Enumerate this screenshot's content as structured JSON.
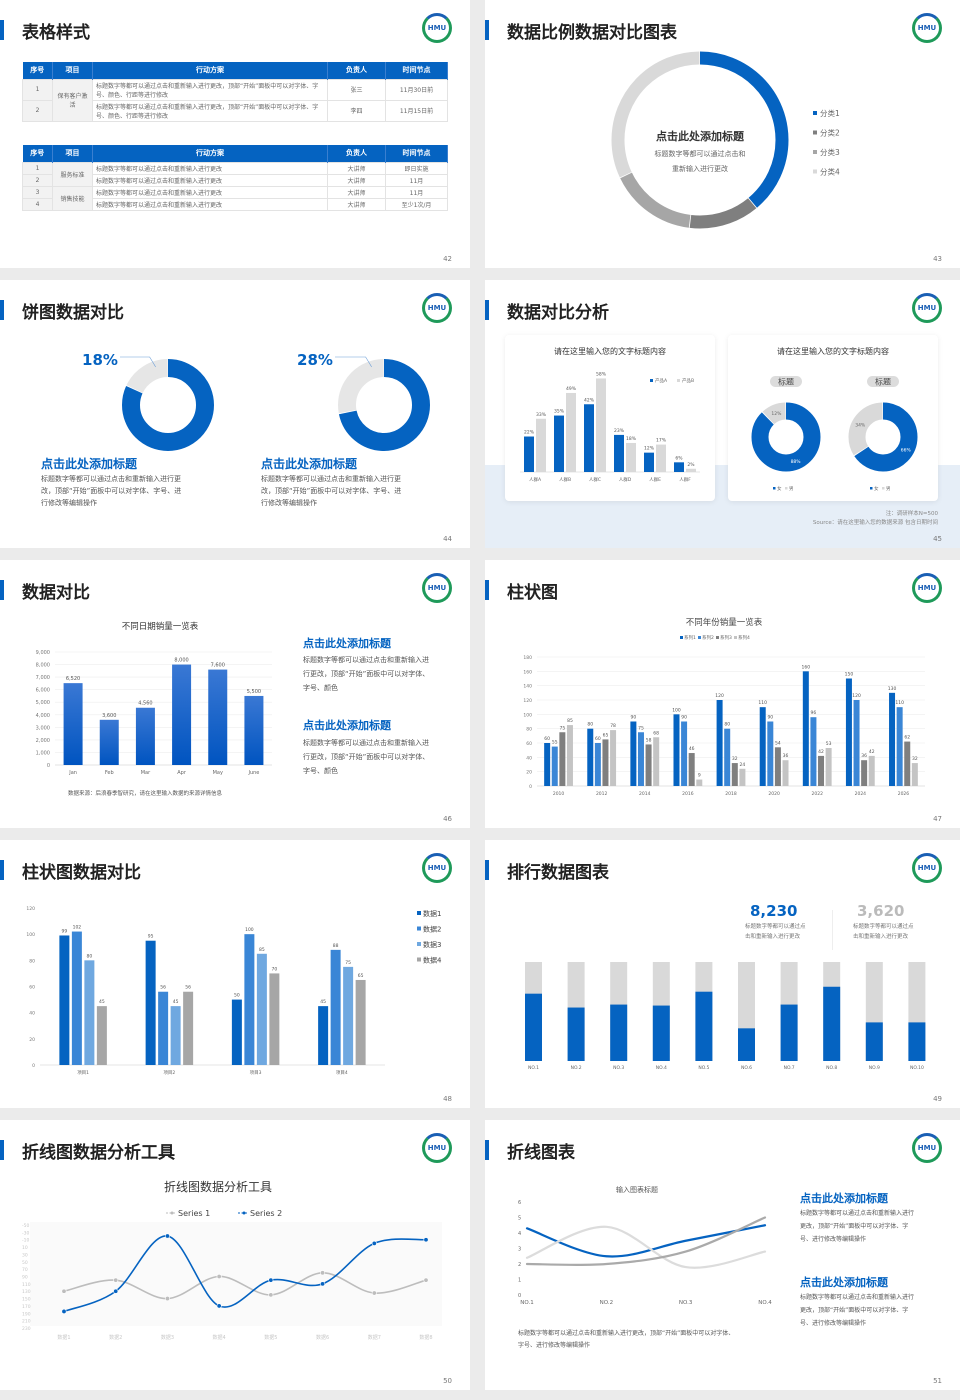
{
  "logo_text": "HMU",
  "colors": {
    "blue": "#0563c1",
    "blue2": "#3a86d6",
    "blue3": "#6fa8e0",
    "grey": "#7f7f7f",
    "grey2": "#a6a6a6",
    "grey3": "#d9d9d9"
  },
  "slides": [
    {
      "title": "表格样式",
      "page": "42"
    },
    {
      "title": "数据比例数据对比图表",
      "page": "43"
    },
    {
      "title": "饼图数据对比",
      "page": "44"
    },
    {
      "title": "数据对比分析",
      "page": "45"
    },
    {
      "title": "数据对比",
      "page": "46"
    },
    {
      "title": "柱状图",
      "page": "47"
    },
    {
      "title": "柱状图数据对比",
      "page": "48"
    },
    {
      "title": "排行数据图表",
      "page": "49"
    },
    {
      "title": "折线图数据分析工具",
      "page": "50"
    },
    {
      "title": "折线图表",
      "page": "51"
    }
  ],
  "s42": {
    "headers": [
      "序号",
      "项目",
      "行动方案",
      "负责人",
      "时间节点"
    ],
    "t1": {
      "project": "保有客户激活",
      "rows": [
        {
          "no": "1",
          "plan": "标题数字等都可以通过点击和重新输入进行更改，顶部“开始”面板中可以对字体、字号、颜色、行距等进行修改",
          "owner": "张三",
          "time": "11月30日前"
        },
        {
          "no": "2",
          "plan": "标题数字等都可以通过点击和重新输入进行更改，顶部“开始”面板中可以对字体、字号、颜色、行距等进行修改",
          "owner": "李四",
          "time": "11月15日前"
        }
      ]
    },
    "t2": {
      "project1": "服务标准",
      "project2": "销售技能",
      "rows": [
        {
          "no": "1",
          "plan": "标题数字等都可以通过点击和重新输入进行更改",
          "owner": "大讲师",
          "time": "即日实施"
        },
        {
          "no": "2",
          "plan": "标题数字等都可以通过点击和重新输入进行更改",
          "owner": "大讲师",
          "time": "11月"
        },
        {
          "no": "3",
          "plan": "标题数字等都可以通过点击和重新输入进行更改",
          "owner": "大讲师",
          "time": "11月"
        },
        {
          "no": "4",
          "plan": "标题数字等都可以通过点击和重新输入进行更改",
          "owner": "大讲师",
          "time": "至少1次/月"
        }
      ]
    }
  },
  "s43": {
    "center_title": "点击此处添加标题",
    "center_text1": "标题数字等都可以通过点击和",
    "center_text2": "重新输入进行更改"
  },
  "s44": {
    "items": [
      {
        "title": "点击此处添加标题",
        "text1": "标题数字等都可以通过点击和重新输入进行更",
        "text2": "改，顶部“开始”面板中可以对字体、字号、进",
        "text3": "行修改等编辑操作"
      },
      {
        "title": "点击此处添加标题",
        "text1": "标题数字等都可以通过点击和重新输入进行更",
        "text2": "改，顶部“开始”面板中可以对字体、字号、进",
        "text3": "行修改等编辑操作"
      }
    ]
  },
  "s45": {
    "card1_title": "请在这里输入您的文字标题内容",
    "card2_title": "请在这里输入您的文字标题内容",
    "note": "注：调研样本N=500",
    "source": "Source：请在这里输入您的数据来源  包含日期时间"
  },
  "s46": {
    "source": "数据来源：后浪春季智研究，请在这里输入数据的来源详情信息",
    "items": [
      {
        "title": "点击此处添加标题",
        "text1": "标题数字等都可以通过点击和重新输入进",
        "text2": "行更改，顶部“开始”面板中可以对字体、",
        "text3": "字号、颜色"
      },
      {
        "title": "点击此处添加标题",
        "text1": "标题数字等都可以通过点击和重新输入进",
        "text2": "行更改，顶部“开始”面板中可以对字体、",
        "text3": "字号、颜色"
      }
    ]
  },
  "s49": {
    "stats": [
      {
        "value": "8,230",
        "text1": "标题数字等都可以通过点",
        "text2": "击和重新输入进行更改"
      },
      {
        "value": "3,620",
        "text1": "标题数字等都可以通过点",
        "text2": "击和重新输入进行更改"
      }
    ]
  },
  "s51": {
    "bottom1": "标题数字等都可以通过点击和重新输入进行更改，顶部“开始”面板中可以对字体、",
    "bottom2": "字号、进行修改等编辑操作",
    "items": [
      {
        "title": "点击此处添加标题",
        "text1": "标题数字等都可以通过点击和重新输入进行",
        "text2": "更改，顶部“开始”面板中可以对字体、字",
        "text3": "号、进行修改等编辑操作"
      },
      {
        "title": "点击此处添加标题",
        "text1": "标题数字等都可以通过点击和重新输入进行",
        "text2": "更改，顶部“开始”面板中可以对字体、字",
        "text3": "号、进行修改等编辑操作"
      }
    ]
  },
  "chart_data": [
    {
      "id": "c43",
      "type": "pie",
      "donut": true,
      "categories": [
        "分类1",
        "分类2",
        "分类3",
        "分类4"
      ],
      "values": [
        39,
        13,
        16,
        32
      ],
      "legend": "right"
    },
    {
      "id": "c44a",
      "type": "pie",
      "donut": true,
      "values": [
        82,
        18
      ],
      "data_label": "18%"
    },
    {
      "id": "c44b",
      "type": "pie",
      "donut": true,
      "values": [
        72,
        28
      ],
      "data_label": "28%"
    },
    {
      "id": "c45a",
      "type": "bar",
      "categories": [
        "人群A",
        "人群B",
        "人群C",
        "人群D",
        "人群E",
        "人群F"
      ],
      "series": [
        {
          "name": "产品A",
          "values": [
            22,
            35,
            42,
            23,
            12,
            6
          ]
        },
        {
          "name": "产品B",
          "values": [
            33,
            49,
            58,
            18,
            17,
            2
          ]
        }
      ],
      "unit": "%",
      "legend": "top-right"
    },
    {
      "id": "c45b",
      "type": "pie",
      "donut": true,
      "label": "标题",
      "categories": [
        "女",
        "男"
      ],
      "values": [
        88,
        12
      ],
      "data_labels": [
        "88%",
        "12%"
      ]
    },
    {
      "id": "c45c",
      "type": "pie",
      "donut": true,
      "label": "标题",
      "categories": [
        "女",
        "男"
      ],
      "values": [
        66,
        34
      ],
      "data_labels": [
        "66%",
        "34%"
      ]
    },
    {
      "id": "c46",
      "type": "bar",
      "title": "不同日期销量一览表",
      "categories": [
        "Jan",
        "Feb",
        "Mar",
        "Apr",
        "May",
        "June"
      ],
      "values": [
        6520,
        3600,
        4560,
        8000,
        7600,
        5500
      ],
      "data_labels": [
        "6,520",
        "3,600",
        "4,560",
        "8,000",
        "7,600",
        "5,500"
      ],
      "ylim": [
        0,
        9000
      ],
      "yticks": [
        "0",
        "1,000",
        "2,000",
        "3,000",
        "4,000",
        "5,000",
        "6,000",
        "7,000",
        "8,000",
        "9,000"
      ],
      "grid": true
    },
    {
      "id": "c47",
      "type": "bar",
      "title": "不同年份销量一览表",
      "categories": [
        "2010",
        "2012",
        "2014",
        "2016",
        "2018",
        "2020",
        "2022",
        "2024",
        "2026"
      ],
      "series": [
        {
          "name": "系列1",
          "values": [
            60,
            80,
            90,
            100,
            120,
            110,
            160,
            150,
            130
          ]
        },
        {
          "name": "系列2",
          "values": [
            55,
            60,
            75,
            90,
            80,
            90,
            96,
            120,
            110
          ]
        },
        {
          "name": "系列3",
          "values": [
            75,
            65,
            58,
            46,
            32,
            54,
            42,
            36,
            62
          ]
        },
        {
          "name": "系列4",
          "values": [
            85,
            78,
            68,
            9,
            24,
            36,
            53,
            42,
            32
          ]
        }
      ],
      "ylim": [
        0,
        180
      ],
      "yticks": [
        "0",
        "20",
        "40",
        "60",
        "80",
        "100",
        "120",
        "140",
        "160",
        "180"
      ],
      "legend": "top",
      "grid": true
    },
    {
      "id": "c48",
      "type": "bar",
      "categories": [
        "项目1",
        "项目2",
        "项目3",
        "项目4"
      ],
      "series": [
        {
          "name": "数据1",
          "values": [
            99,
            95,
            50,
            45
          ]
        },
        {
          "name": "数据2",
          "values": [
            102,
            56,
            100,
            88
          ]
        },
        {
          "name": "数据3",
          "values": [
            80,
            45,
            85,
            75
          ]
        },
        {
          "name": "数据4",
          "values": [
            45,
            56,
            70,
            65
          ]
        }
      ],
      "ylim": [
        0,
        120
      ],
      "yticks": [
        "0",
        "20",
        "40",
        "60",
        "80",
        "100",
        "120"
      ],
      "legend": "right"
    },
    {
      "id": "c49",
      "type": "bar",
      "stacked": true,
      "categories": [
        "NO.1",
        "NO.2",
        "NO.3",
        "NO.4",
        "NO.5",
        "NO.6",
        "NO.7",
        "NO.8",
        "NO.9",
        "NO.10"
      ],
      "values_percent": [
        68,
        54,
        57,
        56,
        70,
        33,
        57,
        75,
        39,
        39
      ]
    },
    {
      "id": "c50",
      "type": "line",
      "title": "折线图数据分析工具",
      "categories": [
        "数据1",
        "数据2",
        "数据3",
        "数据4",
        "数据5",
        "数据6",
        "数据7",
        "数据8"
      ],
      "series": [
        {
          "name": "Series 1",
          "values": [
            50,
            80,
            30,
            90,
            40,
            100,
            45,
            80
          ]
        },
        {
          "name": "Series 2",
          "values": [
            -5,
            50,
            200,
            10,
            80,
            70,
            180,
            190
          ]
        }
      ],
      "ylim": [
        -50,
        230
      ],
      "yticks": [
        "230",
        "210",
        "190",
        "170",
        "150",
        "130",
        "110",
        "90",
        "70",
        "50",
        "30",
        "10",
        "-10",
        "-30",
        "-50"
      ],
      "legend": "top"
    },
    {
      "id": "c51",
      "type": "line",
      "title": "输入图表标题",
      "categories": [
        "NO.1",
        "NO.2",
        "NO.3",
        "NO.4"
      ],
      "series": [
        {
          "values": [
            4.3,
            2.5,
            3.5,
            4.5
          ]
        },
        {
          "values": [
            2.4,
            4.4,
            1.8,
            2.8
          ]
        },
        {
          "values": [
            2,
            2,
            2.8,
            5
          ]
        }
      ],
      "ylim": [
        0,
        6
      ],
      "yticks": [
        "0",
        "1",
        "2",
        "3",
        "4",
        "5",
        "6"
      ]
    }
  ]
}
